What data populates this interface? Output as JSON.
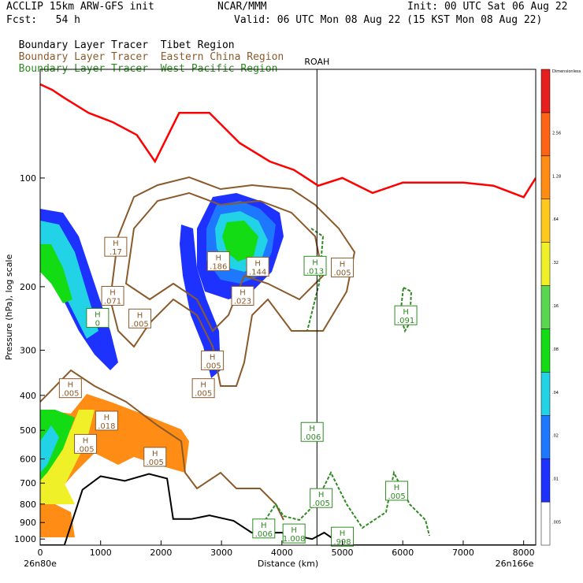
{
  "header": {
    "line1_left": "ACCLIP 15km ARW-GFS init",
    "line1_mid": "NCAR/MMM",
    "line1_right": "Init: 00 UTC Sat 06 Aug 22",
    "line2_left": "Fcst:   54 h",
    "line2_right": "Valid: 06 UTC Mon 08 Aug 22 (15 KST Mon 08 Aug 22)",
    "tracers": [
      {
        "label": "Boundary Layer Tracer",
        "region": "Tibet Region",
        "color": "#000000"
      },
      {
        "label": "Boundary Layer Tracer",
        "region": "Eastern China Region",
        "color": "#8b5a2b"
      },
      {
        "label": "Boundary Layer Tracer",
        "region": "West Pacific Region",
        "color": "#2e8b22"
      }
    ]
  },
  "chart_data": {
    "type": "cross-section contour",
    "xlabel": "Distance (km)",
    "ylabel": "Pressure (hPa), log scale",
    "x_ticks": [
      "0",
      "1000",
      "2000",
      "3000",
      "4000",
      "5000",
      "6000",
      "7000",
      "8000"
    ],
    "y_ticks": [
      "100",
      "200",
      "300",
      "400",
      "500",
      "600",
      "700",
      "800",
      "900",
      "1000"
    ],
    "xlim": [
      0,
      8200
    ],
    "ylim": [
      1040,
      50
    ],
    "y_scale": "log",
    "start_point": "26n80e",
    "end_point": "26n166e",
    "marker": {
      "label": "ROAH",
      "x": 4580
    },
    "colorbar": {
      "colors": [
        "#ffffff",
        "#1e32ff",
        "#1e78ff",
        "#22d2e6",
        "#14dc14",
        "#5ad750",
        "#f0f028",
        "#ffc81e",
        "#ff8c14",
        "#ff6414",
        "#e61e1e"
      ],
      "labels": [
        ".005",
        ".01",
        ".02",
        ".04",
        ".08",
        ".16",
        ".32",
        ".64",
        "1.28",
        "2.56",
        "Dimensionless"
      ]
    },
    "tropopause_line": {
      "color": "#ff0000",
      "points": [
        [
          0,
          55
        ],
        [
          200,
          57
        ],
        [
          400,
          60
        ],
        [
          800,
          66
        ],
        [
          1200,
          70
        ],
        [
          1600,
          76
        ],
        [
          1900,
          90
        ],
        [
          2300,
          66
        ],
        [
          2800,
          66
        ],
        [
          3300,
          80
        ],
        [
          3800,
          90
        ],
        [
          4200,
          95
        ],
        [
          4600,
          105
        ],
        [
          5000,
          100
        ],
        [
          5500,
          110
        ],
        [
          6000,
          103
        ],
        [
          6500,
          103
        ],
        [
          7000,
          103
        ],
        [
          7500,
          105
        ],
        [
          8000,
          113
        ],
        [
          8200,
          100
        ]
      ]
    },
    "terrain_line": {
      "color": "#000000",
      "points": [
        [
          0,
          1040
        ],
        [
          400,
          1040
        ],
        [
          700,
          730
        ],
        [
          1000,
          670
        ],
        [
          1400,
          690
        ],
        [
          1800,
          660
        ],
        [
          2100,
          680
        ],
        [
          2200,
          880
        ],
        [
          2500,
          880
        ],
        [
          2800,
          860
        ],
        [
          3200,
          890
        ],
        [
          3500,
          960
        ],
        [
          4000,
          960
        ],
        [
          4500,
          1000
        ],
        [
          4700,
          960
        ],
        [
          5000,
          1040
        ],
        [
          6000,
          1040
        ],
        [
          7000,
          1040
        ],
        [
          8200,
          1040
        ]
      ]
    },
    "contour_labels": [
      {
        "text": ".17",
        "x": 1250,
        "p": 155,
        "series": "Eastern China Region"
      },
      {
        "text": ".186",
        "x": 2950,
        "p": 170,
        "series": "Eastern China Region"
      },
      {
        "text": ".144",
        "x": 3600,
        "p": 176,
        "series": "Eastern China Region"
      },
      {
        "text": ".013",
        "x": 4550,
        "p": 175,
        "series": "West Pacific Region"
      },
      {
        "text": ".005",
        "x": 5000,
        "p": 177,
        "series": "Eastern China Region"
      },
      {
        "text": ".071",
        "x": 1200,
        "p": 212,
        "series": "Eastern China Region"
      },
      {
        "text": "0",
        "x": 950,
        "p": 244,
        "series": "West Pacific Region"
      },
      {
        "text": ".005",
        "x": 1650,
        "p": 245,
        "series": "Eastern China Region"
      },
      {
        "text": ".023",
        "x": 3350,
        "p": 212,
        "series": "Eastern China Region"
      },
      {
        "text": ".091",
        "x": 6050,
        "p": 240,
        "series": "West Pacific Region"
      },
      {
        "text": ".005",
        "x": 2850,
        "p": 320,
        "series": "Eastern China Region"
      },
      {
        "text": ".005",
        "x": 2700,
        "p": 382,
        "series": "Eastern China Region"
      },
      {
        "text": ".005",
        "x": 500,
        "p": 382,
        "series": "Eastern China Region"
      },
      {
        "text": ".018",
        "x": 1100,
        "p": 470,
        "series": "Eastern China Region"
      },
      {
        "text": ".006",
        "x": 4500,
        "p": 505,
        "series": "West Pacific Region"
      },
      {
        "text": ".005",
        "x": 750,
        "p": 545,
        "series": "Eastern China Region"
      },
      {
        "text": ".005",
        "x": 1900,
        "p": 592,
        "series": "Eastern China Region"
      },
      {
        "text": ".005",
        "x": 4650,
        "p": 770,
        "series": "West Pacific Region"
      },
      {
        "text": ".005",
        "x": 5900,
        "p": 735,
        "series": "West Pacific Region"
      },
      {
        "text": ".006",
        "x": 3700,
        "p": 935,
        "series": "West Pacific Region"
      },
      {
        "text": "1.008",
        "x": 4200,
        "p": 965,
        "series": "West Pacific Region"
      },
      {
        "text": ".998",
        "x": 5000,
        "p": 985,
        "series": "West Pacific Region"
      }
    ]
  }
}
